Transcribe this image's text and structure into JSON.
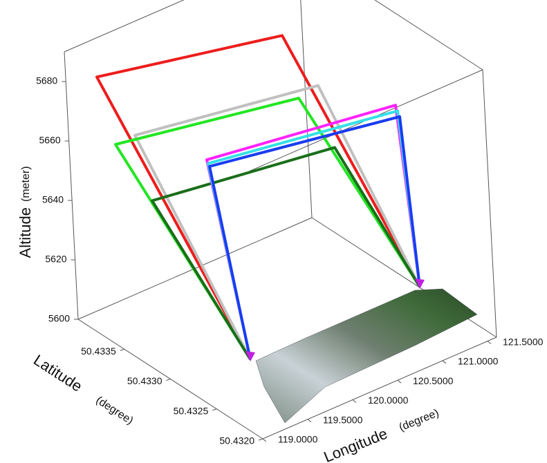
{
  "chart_data": {
    "type": "flight3d",
    "zlabel": "Altitude",
    "zunit": "(meter)",
    "latlabel": "Latitude",
    "latunit": "(degree)",
    "lonlabel": "Longitude",
    "lonunit": "(degree)",
    "zlim": [
      5600,
      5690
    ],
    "zticks": [
      5600,
      5620,
      5640,
      5660,
      5680
    ],
    "latlim": [
      50.432,
      50.434
    ],
    "latticks": [
      {
        "value": 50.432,
        "label": "50.4320"
      },
      {
        "value": 50.4325,
        "label": "50.4325"
      },
      {
        "value": 50.433,
        "label": "50.4330"
      },
      {
        "value": 50.4335,
        "label": "50.4335"
      }
    ],
    "lonlim": [
      119.0,
      121.6
    ],
    "lonticks": [
      {
        "value": 119.0,
        "label": "119.0000"
      },
      {
        "value": 119.5,
        "label": "119.5000"
      },
      {
        "value": 120.0,
        "label": "120.0000"
      },
      {
        "value": 120.5,
        "label": "120.5000"
      },
      {
        "value": 121.0,
        "label": "121.0000"
      },
      {
        "value": 121.5,
        "label": "121.5000"
      }
    ],
    "series": [
      {
        "color": "#ee1c1c",
        "values": [
          5682
        ]
      },
      {
        "color": "#c0c0c0",
        "values": [
          5664
        ]
      },
      {
        "color": "#22e622",
        "values": [
          5660
        ]
      },
      {
        "color": "#1a6e1a",
        "values": [
          5642
        ]
      },
      {
        "color": "#ff22ff",
        "values": [
          5656
        ]
      },
      {
        "color": "#33e0e8",
        "values": [
          5655
        ]
      },
      {
        "color": "#1a3cf0",
        "values": [
          5654
        ]
      }
    ]
  }
}
